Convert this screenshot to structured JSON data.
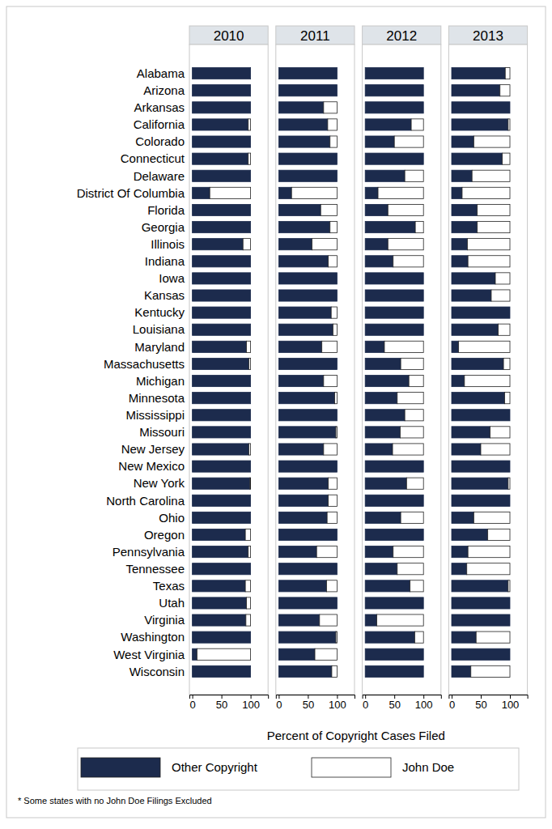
{
  "chart_data": [
    {
      "type": "bar",
      "title": "2010",
      "orientation": "horizontal",
      "stacked": true,
      "categories": [
        "Alabama",
        "Arizona",
        "Arkansas",
        "California",
        "Colorado",
        "Connecticut",
        "Delaware",
        "District Of Columbia",
        "Florida",
        "Georgia",
        "Illinois",
        "Indiana",
        "Iowa",
        "Kansas",
        "Kentucky",
        "Louisiana",
        "Maryland",
        "Massachusetts",
        "Michigan",
        "Minnesota",
        "Mississippi",
        "Missouri",
        "New Jersey",
        "New Mexico",
        "New York",
        "North Carolina",
        "Ohio",
        "Oregon",
        "Pennsylvania",
        "Tennessee",
        "Texas",
        "Utah",
        "Virginia",
        "Washington",
        "West Virginia",
        "Wisconsin"
      ],
      "series": [
        {
          "name": "Other Copyright",
          "color": "#1c2b4d",
          "values": [
            100,
            100,
            100,
            96,
            100,
            96,
            100,
            30,
            100,
            100,
            87,
            100,
            100,
            100,
            100,
            100,
            93,
            97,
            100,
            100,
            100,
            100,
            97,
            100,
            99,
            100,
            100,
            91,
            96,
            100,
            91,
            93,
            92,
            100,
            8,
            100
          ]
        },
        {
          "name": "John Doe",
          "color": "#ffffff",
          "values": [
            0,
            0,
            0,
            4,
            0,
            4,
            0,
            70,
            0,
            0,
            13,
            0,
            0,
            0,
            0,
            0,
            7,
            3,
            0,
            0,
            0,
            0,
            3,
            0,
            1,
            0,
            0,
            9,
            4,
            0,
            9,
            7,
            8,
            0,
            92,
            0
          ]
        }
      ],
      "xlim": [
        -5,
        130
      ],
      "xticks": [
        0,
        50,
        100
      ]
    },
    {
      "type": "bar",
      "title": "2011",
      "orientation": "horizontal",
      "stacked": true,
      "tick_labels": "x",
      "categories": [
        "Alabama",
        "Arizona",
        "Arkansas",
        "California",
        "Colorado",
        "Connecticut",
        "Delaware",
        "District Of Columbia",
        "Florida",
        "Georgia",
        "Illinois",
        "Indiana",
        "Iowa",
        "Kansas",
        "Kentucky",
        "Louisiana",
        "Maryland",
        "Massachusetts",
        "Michigan",
        "Minnesota",
        "Mississippi",
        "Missouri",
        "New Jersey",
        "New Mexico",
        "New York",
        "North Carolina",
        "Ohio",
        "Oregon",
        "Pennsylvania",
        "Tennessee",
        "Texas",
        "Utah",
        "Virginia",
        "Washington",
        "West Virginia",
        "Wisconsin"
      ],
      "series": [
        {
          "name": "Other Copyright",
          "color": "#1c2b4d",
          "values": [
            100,
            100,
            77,
            84,
            88,
            100,
            100,
            22,
            72,
            88,
            57,
            85,
            100,
            100,
            90,
            93,
            74,
            100,
            77,
            96,
            100,
            98,
            77,
            100,
            85,
            85,
            83,
            100,
            65,
            100,
            82,
            100,
            70,
            98,
            62,
            91
          ]
        },
        {
          "name": "John Doe",
          "color": "#ffffff",
          "values": [
            0,
            0,
            23,
            16,
            12,
            0,
            0,
            78,
            28,
            12,
            43,
            15,
            0,
            0,
            10,
            7,
            26,
            0,
            23,
            4,
            0,
            2,
            23,
            0,
            15,
            15,
            17,
            0,
            35,
            0,
            18,
            0,
            30,
            2,
            38,
            9
          ]
        }
      ],
      "xlim": [
        -5,
        130
      ],
      "xticks": [
        0,
        50,
        100
      ]
    },
    {
      "type": "bar",
      "title": "2012",
      "orientation": "horizontal",
      "stacked": true,
      "tick_labels": "x",
      "categories": [
        "Alabama",
        "Arizona",
        "Arkansas",
        "California",
        "Colorado",
        "Connecticut",
        "Delaware",
        "District Of Columbia",
        "Florida",
        "Georgia",
        "Illinois",
        "Indiana",
        "Iowa",
        "Kansas",
        "Kentucky",
        "Louisiana",
        "Maryland",
        "Massachusetts",
        "Michigan",
        "Minnesota",
        "Mississippi",
        "Missouri",
        "New Jersey",
        "New Mexico",
        "New York",
        "North Carolina",
        "Ohio",
        "Oregon",
        "Pennsylvania",
        "Tennessee",
        "Texas",
        "Utah",
        "Virginia",
        "Washington",
        "West Virginia",
        "Wisconsin"
      ],
      "series": [
        {
          "name": "Other Copyright",
          "color": "#1c2b4d",
          "values": [
            100,
            100,
            100,
            79,
            50,
            100,
            68,
            22,
            39,
            86,
            39,
            48,
            100,
            100,
            100,
            100,
            33,
            61,
            75,
            55,
            68,
            60,
            47,
            100,
            71,
            100,
            61,
            100,
            48,
            55,
            77,
            100,
            20,
            85,
            100,
            100
          ]
        },
        {
          "name": "John Doe",
          "color": "#ffffff",
          "values": [
            0,
            0,
            0,
            21,
            50,
            0,
            32,
            78,
            61,
            14,
            61,
            52,
            0,
            0,
            0,
            0,
            67,
            39,
            25,
            45,
            32,
            40,
            53,
            0,
            29,
            0,
            39,
            0,
            52,
            45,
            23,
            0,
            80,
            15,
            0,
            0
          ]
        }
      ],
      "xlim": [
        -5,
        130
      ],
      "xticks": [
        0,
        50,
        100
      ]
    },
    {
      "type": "bar",
      "title": "2013",
      "orientation": "horizontal",
      "stacked": true,
      "tick_labels": "x",
      "categories": [
        "Alabama",
        "Arizona",
        "Arkansas",
        "California",
        "Colorado",
        "Connecticut",
        "Delaware",
        "District Of Columbia",
        "Florida",
        "Georgia",
        "Illinois",
        "Indiana",
        "Iowa",
        "Kansas",
        "Kentucky",
        "Louisiana",
        "Maryland",
        "Massachusetts",
        "Michigan",
        "Minnesota",
        "Mississippi",
        "Missouri",
        "New Jersey",
        "New Mexico",
        "New York",
        "North Carolina",
        "Ohio",
        "Oregon",
        "Pennsylvania",
        "Tennessee",
        "Texas",
        "Utah",
        "Virginia",
        "Washington",
        "West Virginia",
        "Wisconsin"
      ],
      "series": [
        {
          "name": "Other Copyright",
          "color": "#1c2b4d",
          "values": [
            92,
            83,
            100,
            97,
            38,
            87,
            35,
            18,
            44,
            44,
            27,
            28,
            75,
            68,
            100,
            80,
            12,
            89,
            22,
            91,
            100,
            66,
            50,
            100,
            97,
            100,
            38,
            62,
            28,
            26,
            97,
            100,
            100,
            42,
            100,
            33
          ]
        },
        {
          "name": "John Doe",
          "color": "#ffffff",
          "values": [
            8,
            17,
            0,
            3,
            62,
            13,
            65,
            82,
            56,
            56,
            73,
            72,
            25,
            32,
            0,
            20,
            88,
            11,
            78,
            9,
            0,
            34,
            50,
            0,
            3,
            0,
            62,
            38,
            72,
            74,
            3,
            0,
            0,
            58,
            0,
            67
          ]
        }
      ],
      "xlim": [
        -5,
        130
      ],
      "xticks": [
        0,
        50,
        100
      ]
    }
  ],
  "xlabel": "Percent of Copyright Cases Filed",
  "note": "* Some states with no John Doe Filings Excluded"
}
